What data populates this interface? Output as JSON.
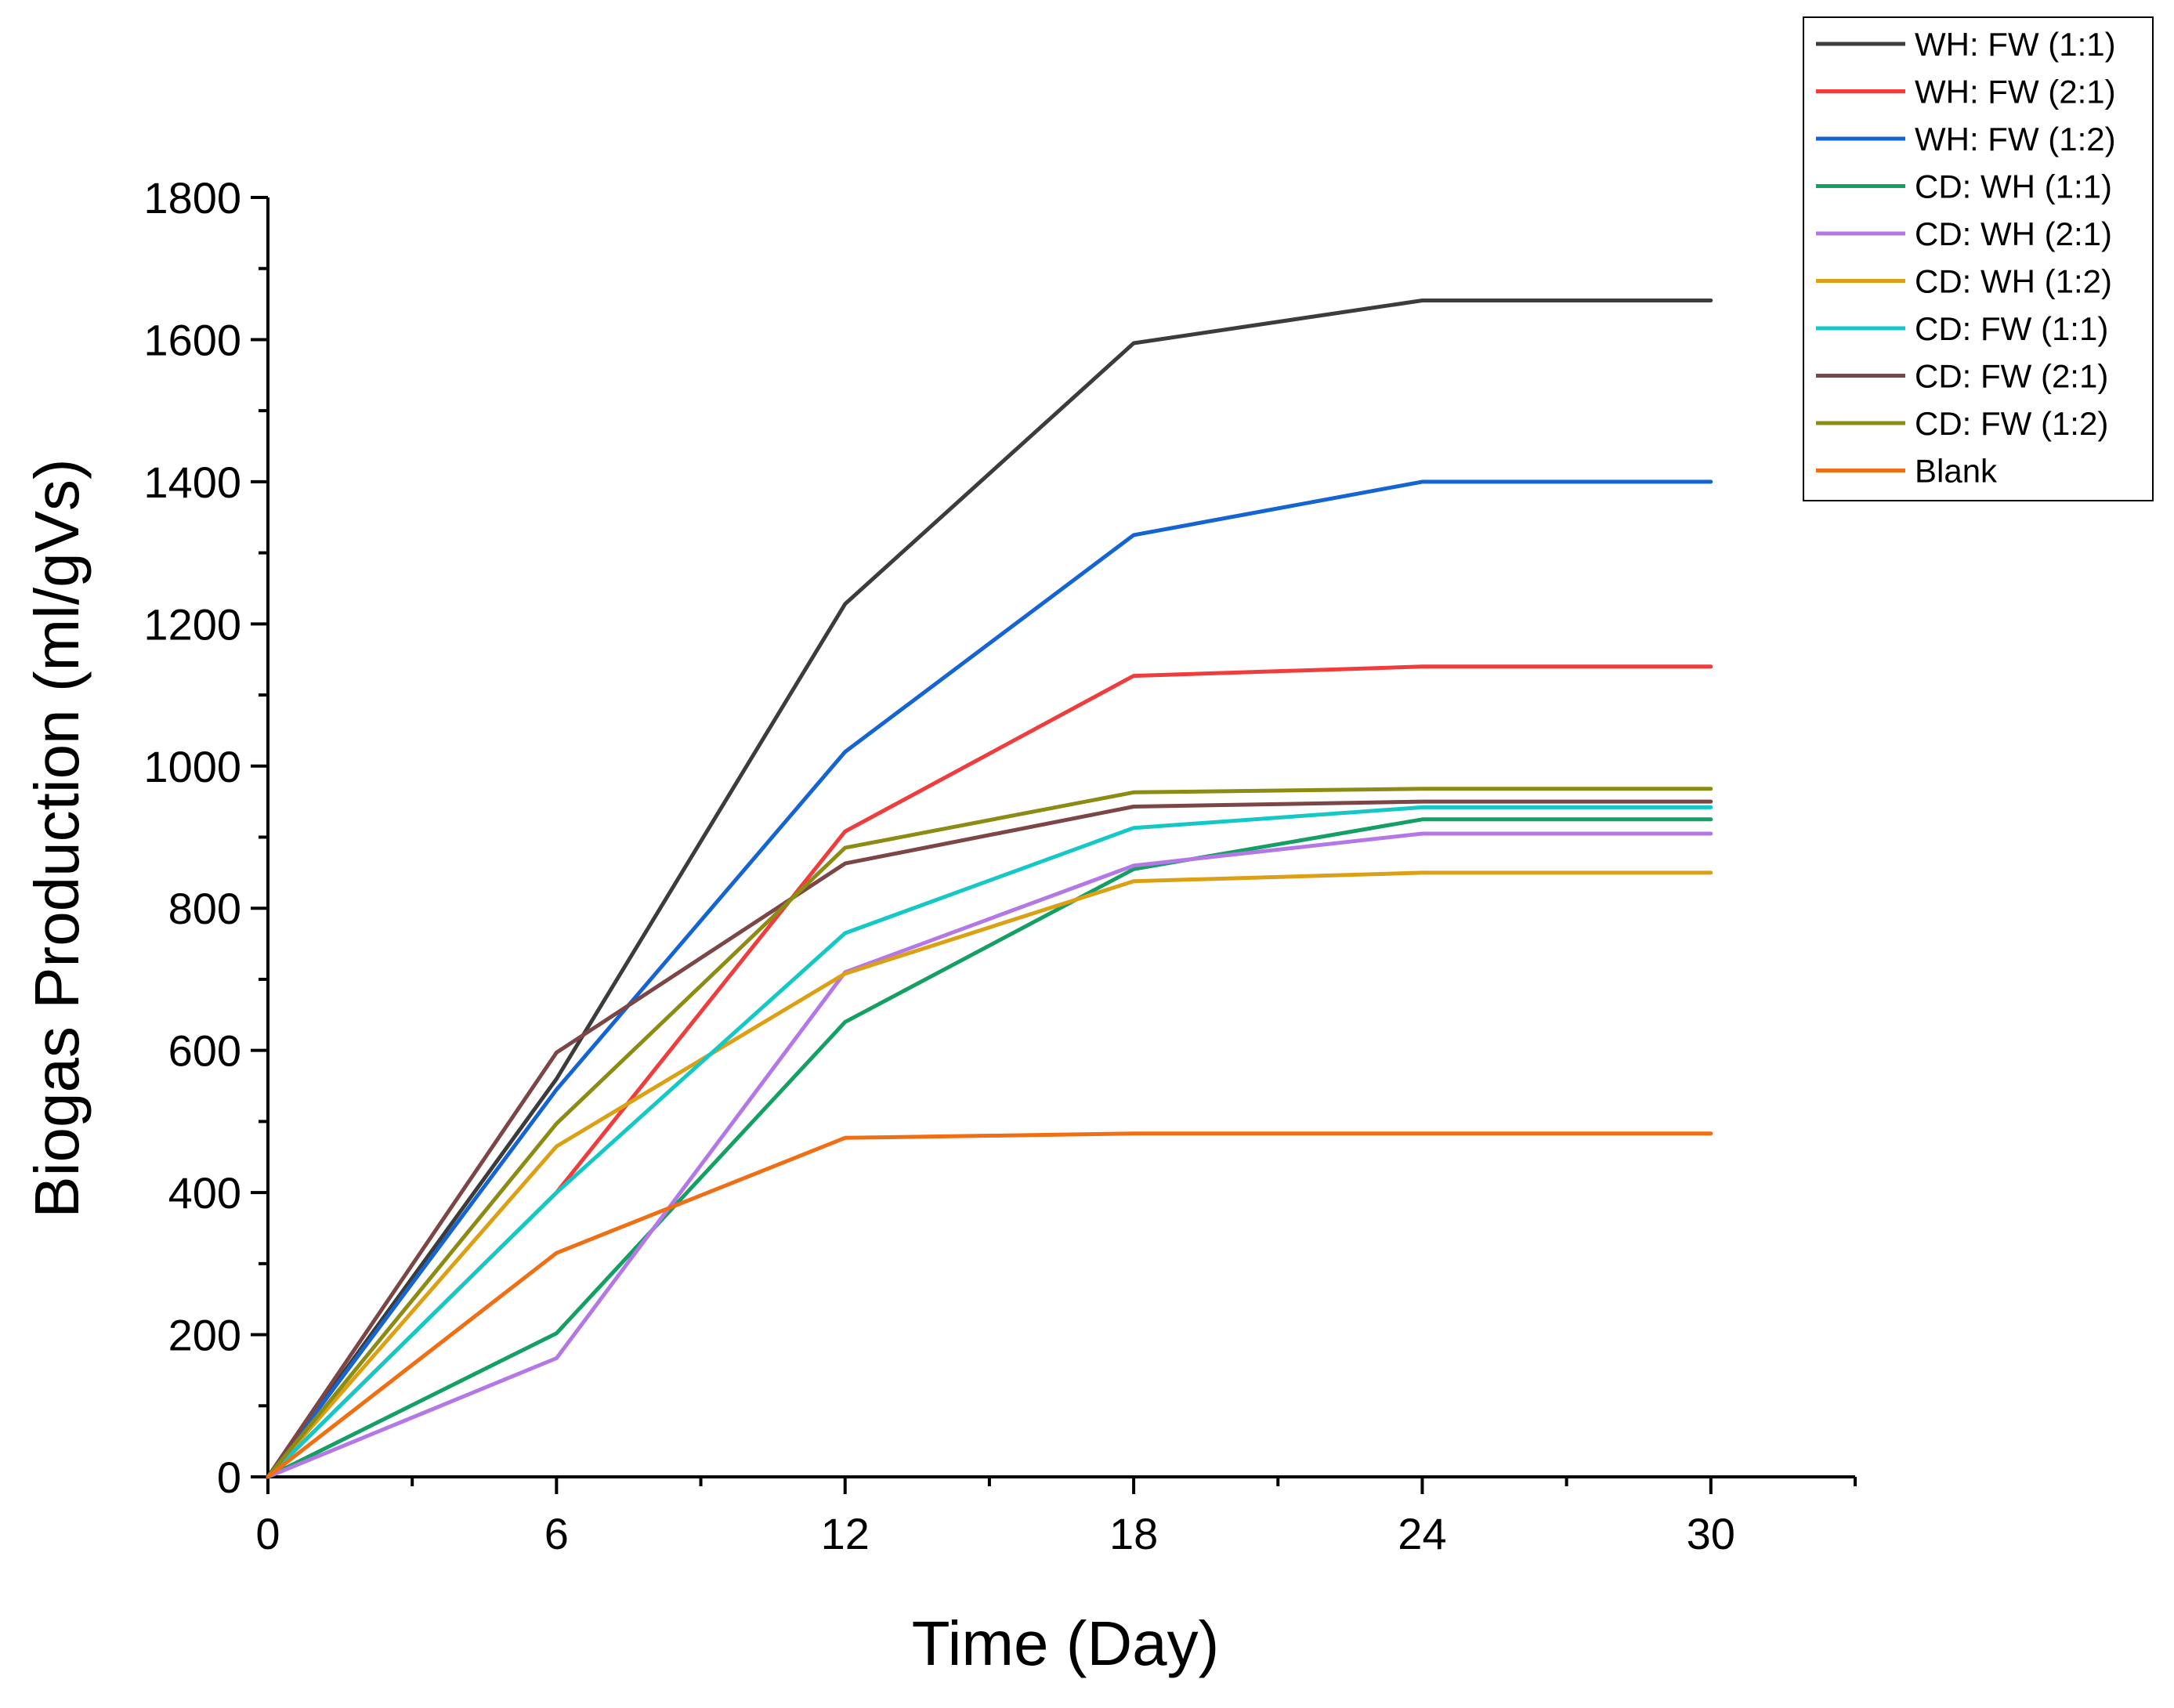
{
  "chart_data": {
    "type": "line",
    "xlabel": "Time (Day)",
    "ylabel": "Biogas Production (ml/gVs)",
    "xlim": [
      0,
      33
    ],
    "ylim": [
      0,
      1800
    ],
    "x_ticks": [
      0,
      6,
      12,
      18,
      24,
      30
    ],
    "y_ticks": [
      0,
      200,
      400,
      600,
      800,
      1000,
      1200,
      1400,
      1600,
      1800
    ],
    "x": [
      0,
      6,
      12,
      18,
      24,
      30
    ],
    "legend_position": "top-right",
    "grid": false,
    "series": [
      {
        "name": "WH: FW (1:1)",
        "color": "#3c3c3c",
        "values": [
          0,
          560,
          1228,
          1595,
          1655,
          1655
        ]
      },
      {
        "name": "WH: FW (2:1)",
        "color": "#f03c3c",
        "values": [
          0,
          400,
          908,
          1127,
          1140,
          1140
        ]
      },
      {
        "name": "WH: FW (1:2)",
        "color": "#1464d2",
        "values": [
          0,
          545,
          1020,
          1325,
          1400,
          1400
        ]
      },
      {
        "name": "CD: WH (1:1)",
        "color": "#14a064",
        "values": [
          0,
          202,
          640,
          855,
          925,
          925
        ]
      },
      {
        "name": "CD: WH (2:1)",
        "color": "#b478e6",
        "values": [
          0,
          167,
          710,
          860,
          905,
          905
        ]
      },
      {
        "name": "CD: WH (1:2)",
        "color": "#dca014",
        "values": [
          0,
          465,
          708,
          838,
          850,
          850
        ]
      },
      {
        "name": "CD: FW (1:1)",
        "color": "#14c8c8",
        "values": [
          0,
          400,
          765,
          913,
          942,
          942
        ]
      },
      {
        "name": "CD: FW (2:1)",
        "color": "#7d4646",
        "values": [
          0,
          597,
          863,
          943,
          950,
          950
        ]
      },
      {
        "name": "CD: FW (1:2)",
        "color": "#8c8c14",
        "values": [
          0,
          497,
          885,
          963,
          968,
          968
        ]
      },
      {
        "name": "Blank",
        "color": "#f06e14",
        "values": [
          0,
          315,
          477,
          483,
          483,
          483
        ]
      }
    ]
  }
}
